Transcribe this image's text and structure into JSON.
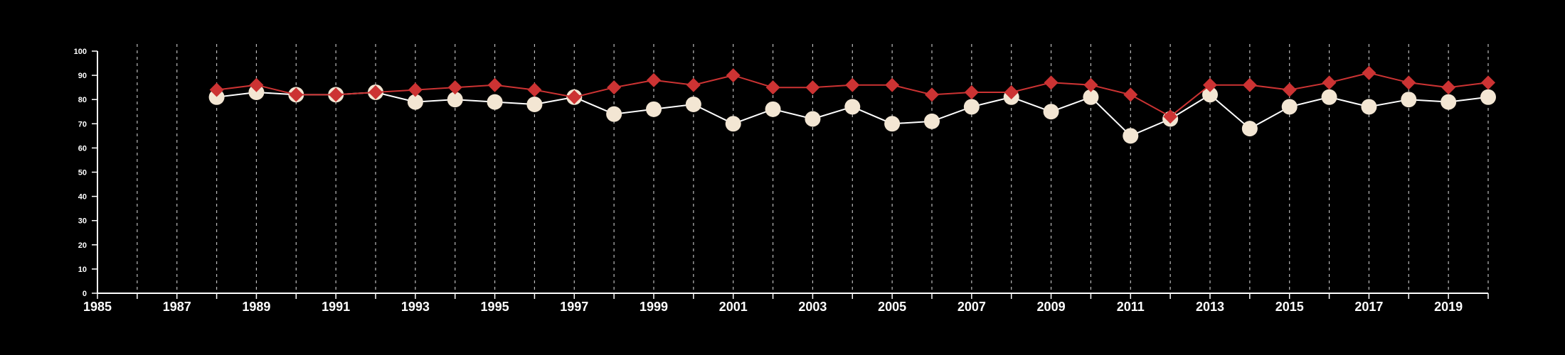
{
  "chart_data": {
    "type": "line",
    "title": "",
    "xlabel": "",
    "ylabel": "",
    "xlim": [
      1985,
      2020
    ],
    "ylim": [
      0,
      100
    ],
    "x_ticks": [
      1985,
      1987,
      1989,
      1991,
      1993,
      1995,
      1997,
      1999,
      2001,
      2003,
      2005,
      2007,
      2009,
      2011,
      2013,
      2015,
      2017,
      2019
    ],
    "y_ticks": [
      0,
      10,
      20,
      30,
      40,
      50,
      60,
      70,
      80,
      90,
      100
    ],
    "vertical_gridlines": true,
    "horizontal_gridlines": false,
    "legend": "none",
    "background_color": "#000000",
    "series": [
      {
        "color": "#cc3333",
        "marker": "diamond",
        "x": [
          1988,
          1989,
          1990,
          1991,
          1992,
          1993,
          1994,
          1995,
          1996,
          1997,
          1998,
          1999,
          2000,
          2001,
          2002,
          2003,
          2004,
          2005,
          2006,
          2007,
          2008,
          2009,
          2010,
          2011,
          2012,
          2013,
          2014,
          2015,
          2016,
          2017,
          2018,
          2019,
          2020
        ],
        "values": [
          84,
          86,
          82,
          82,
          83,
          84,
          85,
          86,
          84,
          81,
          85,
          88,
          86,
          90,
          85,
          85,
          86,
          86,
          82,
          83,
          83,
          87,
          86,
          82,
          73,
          86,
          86,
          84,
          87,
          91,
          87,
          85,
          87
        ]
      },
      {
        "color": "#f3e6d3",
        "line_color": "#ffffff",
        "marker": "circle",
        "x": [
          1988,
          1989,
          1990,
          1991,
          1992,
          1993,
          1994,
          1995,
          1996,
          1997,
          1998,
          1999,
          2000,
          2001,
          2002,
          2003,
          2004,
          2005,
          2006,
          2007,
          2008,
          2009,
          2010,
          2011,
          2012,
          2013,
          2014,
          2015,
          2016,
          2017,
          2018,
          2019,
          2020
        ],
        "values": [
          81,
          83,
          82,
          82,
          83,
          79,
          80,
          79,
          78,
          81,
          74,
          76,
          78,
          70,
          76,
          72,
          77,
          70,
          71,
          77,
          81,
          75,
          81,
          65,
          72,
          82,
          68,
          77,
          81,
          77,
          80,
          79,
          81
        ]
      }
    ]
  }
}
